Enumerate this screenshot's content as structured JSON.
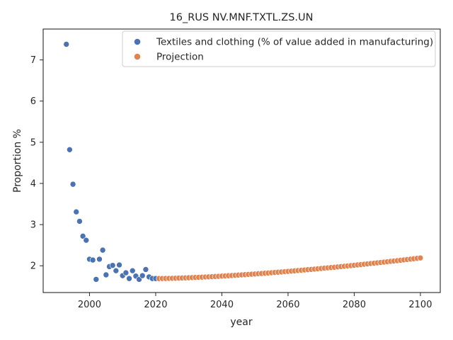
{
  "chart_data": {
    "type": "scatter",
    "title": "16_RUS NV.MNF.TXTL.ZS.UN",
    "xlabel": "year",
    "ylabel": "Proportion %",
    "xlim": [
      1986,
      2106
    ],
    "ylim": [
      1.35,
      7.75
    ],
    "xticks": [
      2000,
      2020,
      2040,
      2060,
      2080,
      2100
    ],
    "yticks": [
      2,
      3,
      4,
      5,
      6,
      7
    ],
    "grid": false,
    "legend_position": "top-right",
    "series": [
      {
        "name": "Textiles and clothing (% of value added in manufacturing)",
        "color": "#4c72b0",
        "points": [
          [
            1993,
            7.38
          ],
          [
            1994,
            4.82
          ],
          [
            1995,
            3.98
          ],
          [
            1996,
            3.31
          ],
          [
            1997,
            3.08
          ],
          [
            1998,
            2.72
          ],
          [
            1999,
            2.62
          ],
          [
            2000,
            2.16
          ],
          [
            2001,
            2.14
          ],
          [
            2002,
            1.67
          ],
          [
            2003,
            2.16
          ],
          [
            2004,
            2.38
          ],
          [
            2005,
            1.78
          ],
          [
            2006,
            1.98
          ],
          [
            2007,
            2.01
          ],
          [
            2008,
            1.88
          ],
          [
            2009,
            2.02
          ],
          [
            2010,
            1.76
          ],
          [
            2011,
            1.83
          ],
          [
            2012,
            1.69
          ],
          [
            2013,
            1.88
          ],
          [
            2014,
            1.75
          ],
          [
            2015,
            1.67
          ],
          [
            2016,
            1.76
          ],
          [
            2017,
            1.91
          ],
          [
            2018,
            1.73
          ],
          [
            2019,
            1.69
          ],
          [
            2020,
            1.69
          ]
        ]
      },
      {
        "name": "Projection",
        "color": "#dd8452",
        "x_start": 2021,
        "x_end": 2100,
        "y_start": 1.69,
        "y_end": 2.19
      }
    ]
  }
}
